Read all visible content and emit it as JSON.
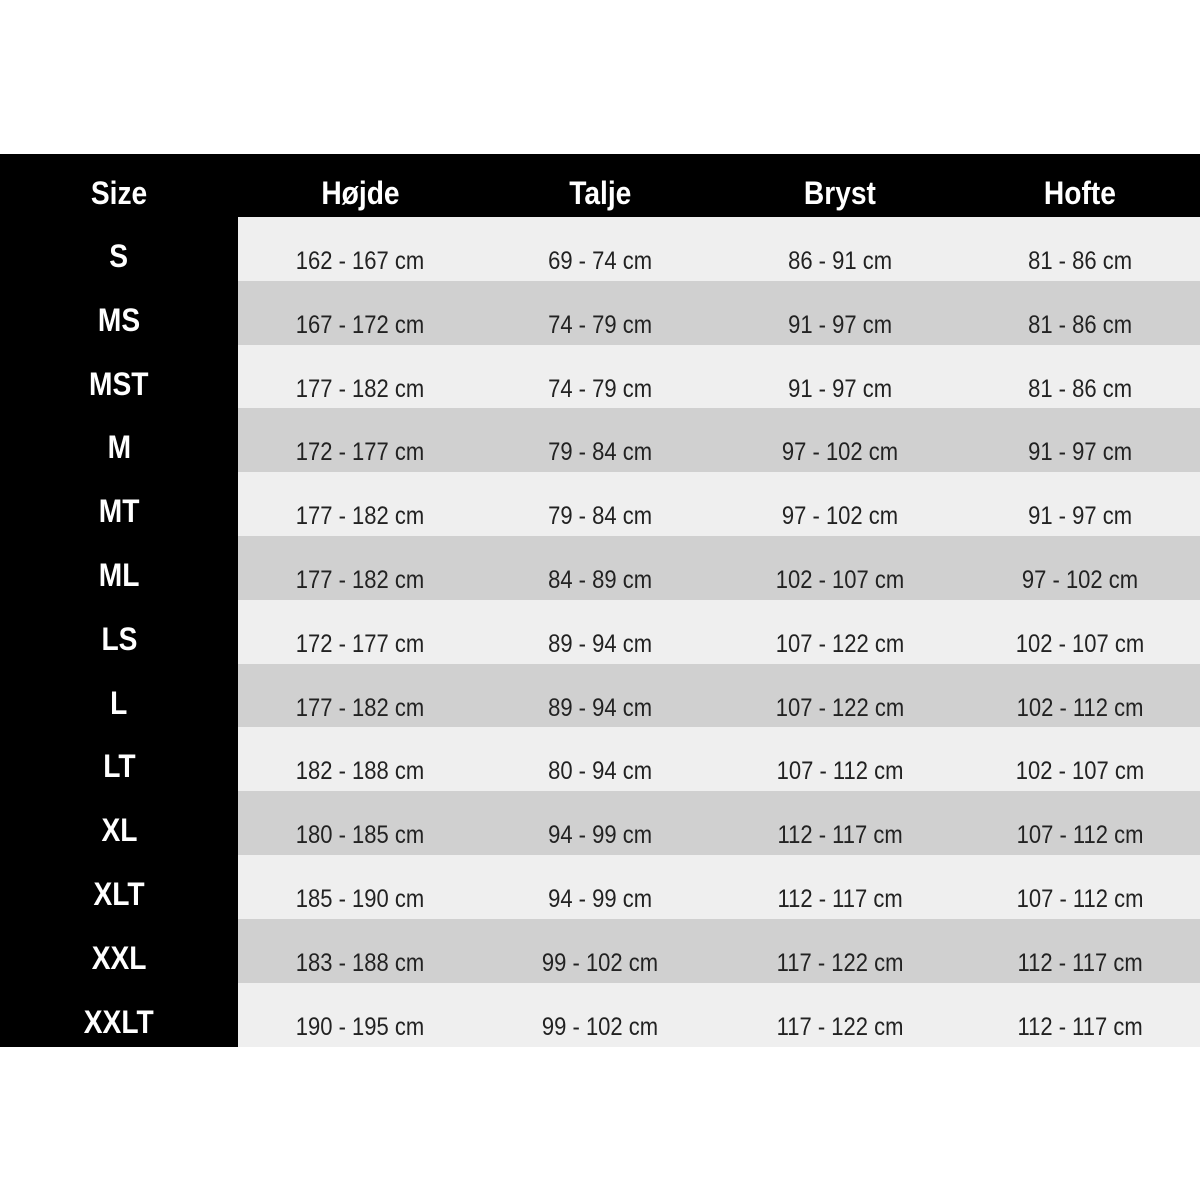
{
  "headers": [
    "Size",
    "Højde",
    "Talje",
    "Bryst",
    "Hofte"
  ],
  "colors": {
    "background": "#000000",
    "row_light": "#efefef",
    "row_dark": "#d0d0d0",
    "header_text": "#ffffff",
    "cell_text": "#222222"
  },
  "rows": [
    {
      "size": "S",
      "hojde": "162 - 167 cm",
      "talje": "69 - 74 cm",
      "bryst": "86 - 91 cm",
      "hofte": "81 - 86 cm"
    },
    {
      "size": "MS",
      "hojde": "167 - 172 cm",
      "talje": "74 - 79 cm",
      "bryst": "91 - 97 cm",
      "hofte": "81 - 86 cm"
    },
    {
      "size": "MST",
      "hojde": "177 - 182 cm",
      "talje": "74 - 79 cm",
      "bryst": "91 - 97 cm",
      "hofte": "81 - 86 cm"
    },
    {
      "size": "M",
      "hojde": "172 - 177 cm",
      "talje": "79 - 84 cm",
      "bryst": "97 - 102 cm",
      "hofte": "91 - 97 cm"
    },
    {
      "size": "MT",
      "hojde": "177 - 182 cm",
      "talje": "79 - 84 cm",
      "bryst": "97 - 102 cm",
      "hofte": "91 - 97 cm"
    },
    {
      "size": "ML",
      "hojde": "177 - 182 cm",
      "talje": "84 - 89 cm",
      "bryst": "102 - 107 cm",
      "hofte": "97 - 102 cm"
    },
    {
      "size": "LS",
      "hojde": "172 - 177 cm",
      "talje": "89 - 94 cm",
      "bryst": "107 - 122 cm",
      "hofte": "102 - 107 cm"
    },
    {
      "size": "L",
      "hojde": "177 - 182 cm",
      "talje": "89 - 94 cm",
      "bryst": "107 - 122 cm",
      "hofte": "102 - 112 cm"
    },
    {
      "size": "LT",
      "hojde": "182 - 188 cm",
      "talje": "80 - 94 cm",
      "bryst": "107 - 112 cm",
      "hofte": "102 - 107 cm"
    },
    {
      "size": "XL",
      "hojde": "180 - 185 cm",
      "talje": "94 - 99 cm",
      "bryst": "112 - 117 cm",
      "hofte": "107 - 112 cm"
    },
    {
      "size": "XLT",
      "hojde": "185 - 190 cm",
      "talje": "94 - 99 cm",
      "bryst": "112 - 117 cm",
      "hofte": "107 - 112 cm"
    },
    {
      "size": "XXL",
      "hojde": "183 - 188 cm",
      "talje": "99 - 102 cm",
      "bryst": "117 - 122 cm",
      "hofte": "112 - 117 cm"
    },
    {
      "size": "XXLT",
      "hojde": "190 - 195 cm",
      "talje": "99 - 102 cm",
      "bryst": "117 - 122 cm",
      "hofte": "112 - 117 cm"
    }
  ]
}
